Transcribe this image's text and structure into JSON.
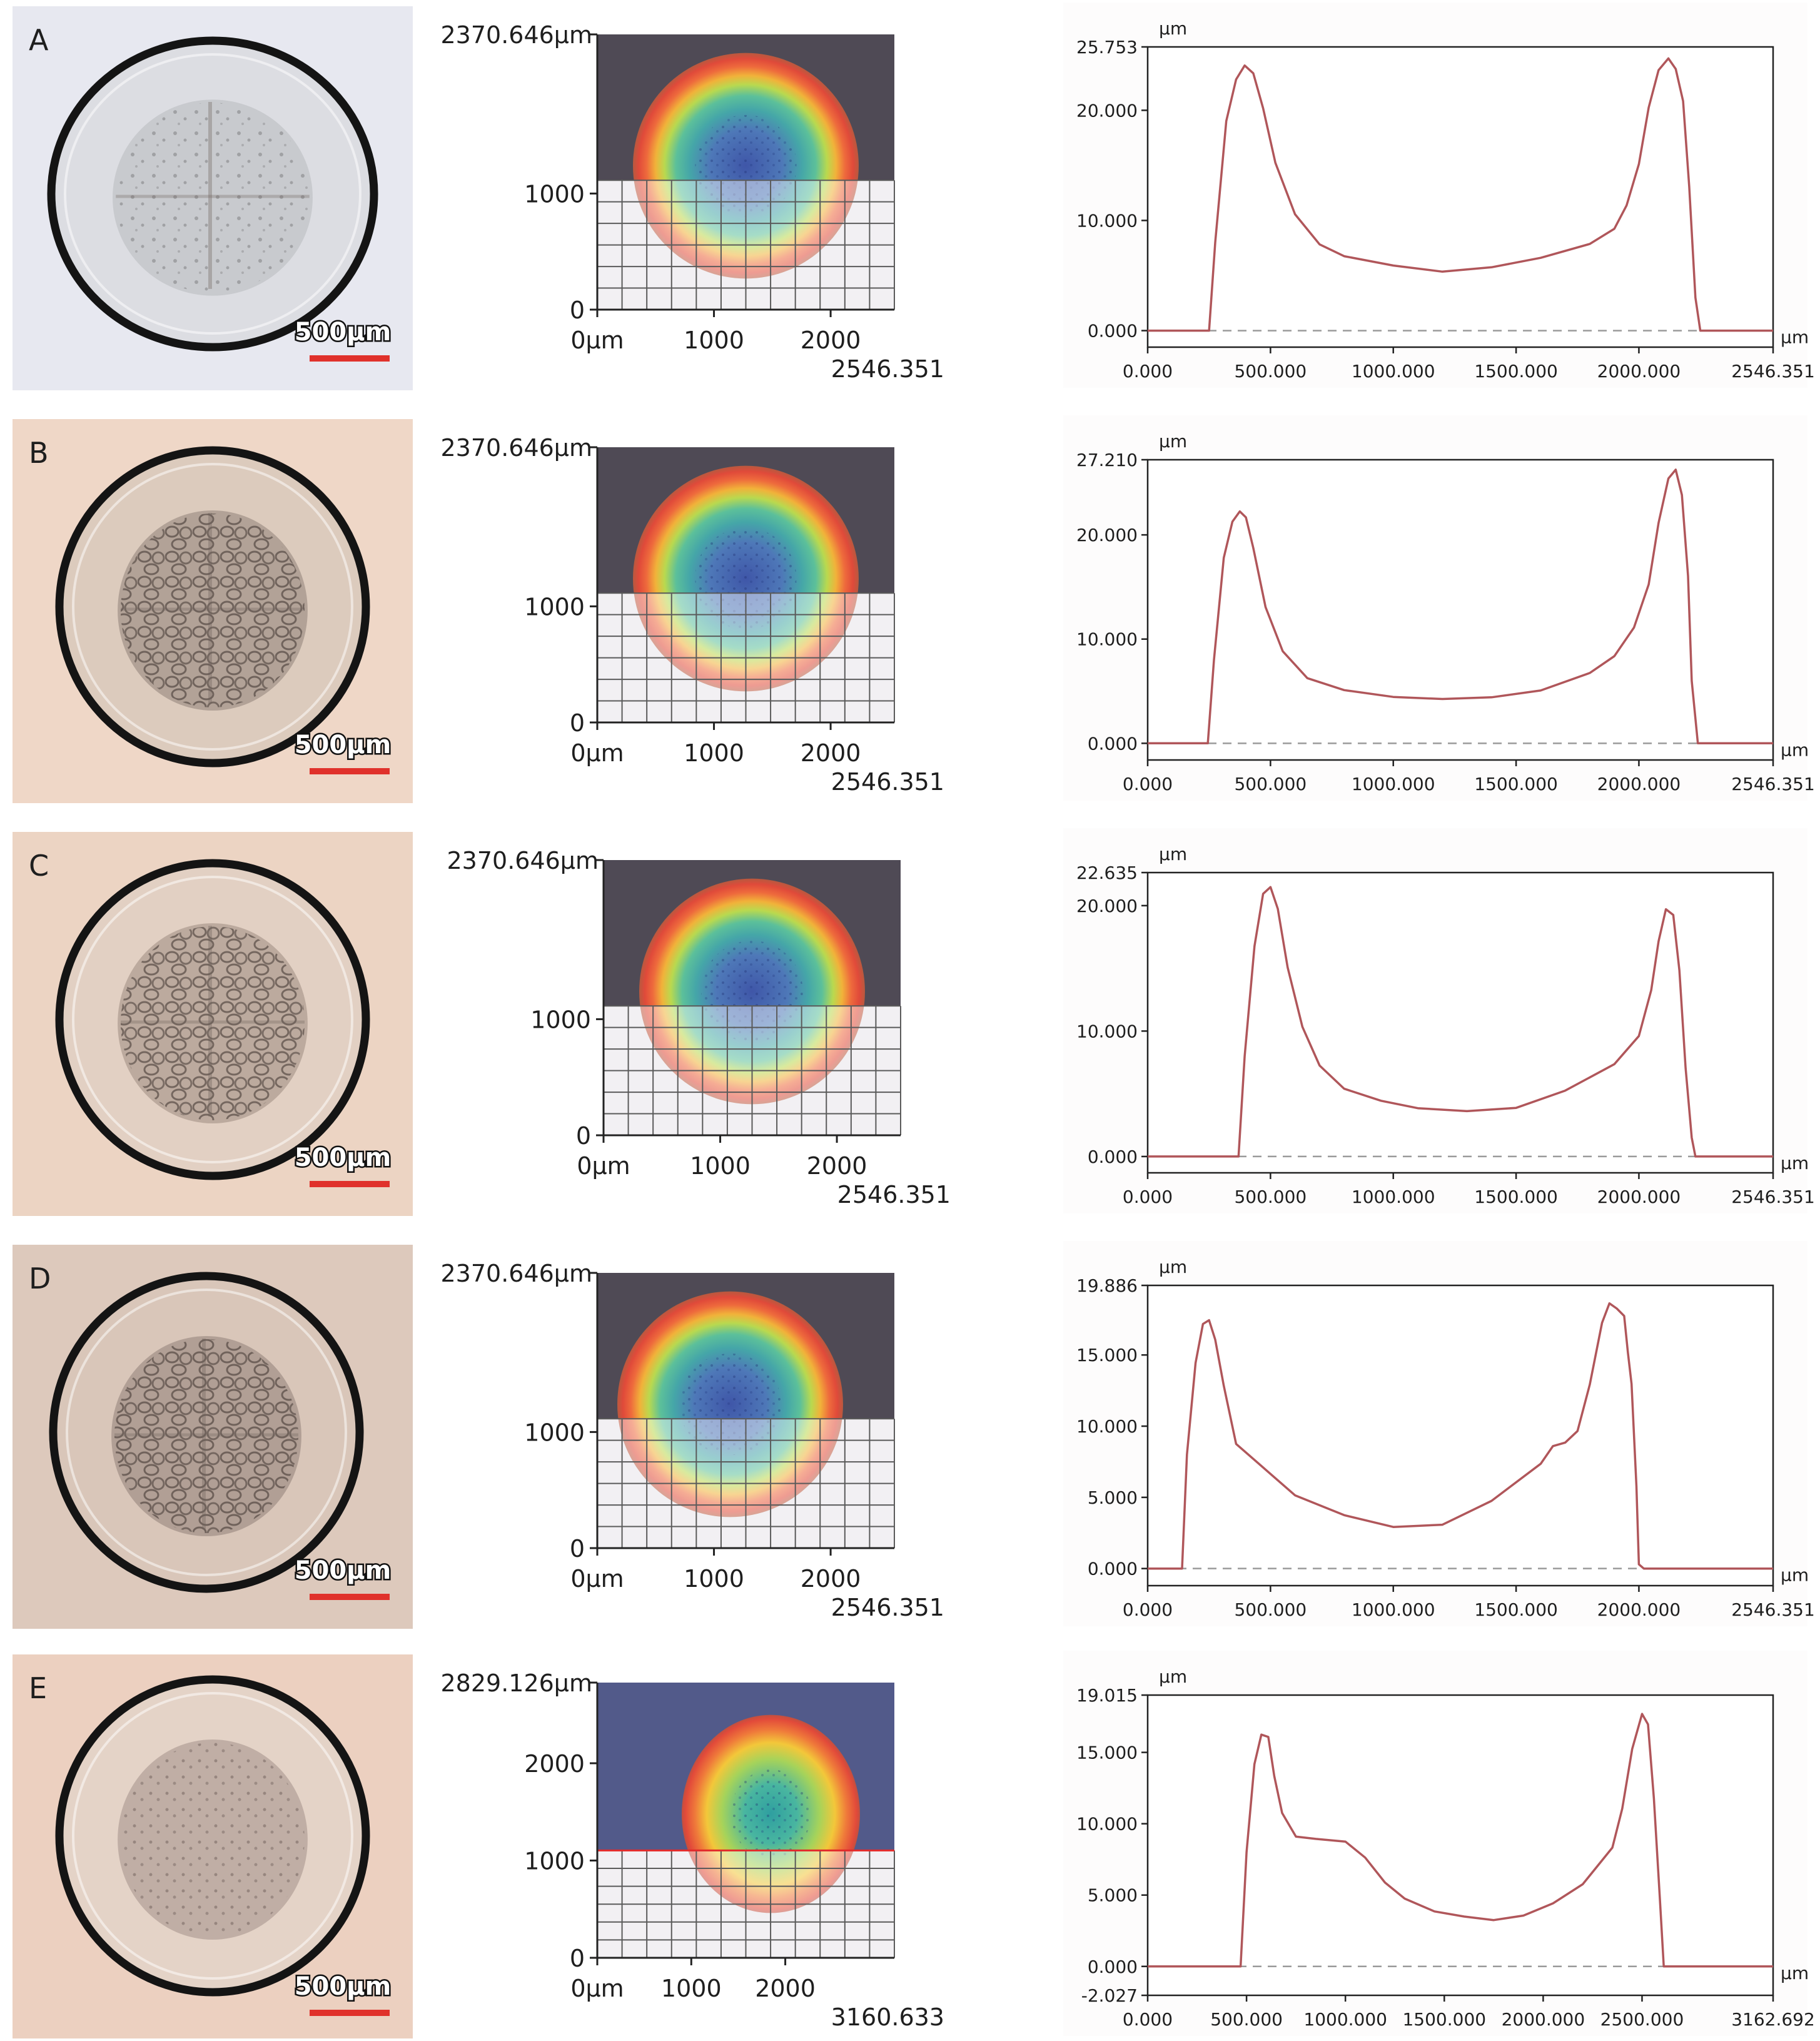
{
  "figure": {
    "scale_bar_label": "500µm",
    "colors": {
      "profile_line": "#b0565a",
      "scale_bar": "#e0312b",
      "map_dark_top": "#4f4a55",
      "grid_line": "#5a5a5a"
    }
  },
  "panels": [
    {
      "label": "A",
      "photo": {
        "bg": "#e7e8f0",
        "ring": "#141414",
        "inner": "#dcdde2",
        "center": "#b8b9bd",
        "pattern": "grid"
      },
      "height_map": {
        "y_max_label": "2370.646µm",
        "y_ticks": [
          "1000",
          "0"
        ],
        "x_ticks": [
          "0µm",
          "1000",
          "2000"
        ],
        "x_max_label": "2546.351",
        "y_max": 2370.646,
        "x_max": 2546.351
      },
      "chart_data": {
        "type": "line",
        "title": "",
        "xlabel": "µm",
        "ylabel": "µm",
        "x_tick_labels": [
          "0.000",
          "500.000",
          "1000.000",
          "1500.000",
          "2000.000",
          "2546.351"
        ],
        "y_tick_labels": [
          "25.753",
          "20.000",
          "10.000",
          "0.000"
        ],
        "xlim": [
          0,
          2546.351
        ],
        "ylim": [
          -1.5,
          25.753
        ],
        "baseline": 0,
        "series": [
          {
            "name": "profile",
            "x": [
              0,
              250,
              275,
              320,
              360,
              395,
              430,
              470,
              520,
              600,
              700,
              800,
              1000,
              1200,
              1400,
              1600,
              1800,
              1900,
              1950,
              2000,
              2040,
              2080,
              2120,
              2150,
              2180,
              2205,
              2230,
              2250,
              2546.351
            ],
            "y": [
              0,
              0,
              8,
              19,
              23,
              24.3,
              23.4,
              20,
              15,
              10.5,
              8,
              7,
              6,
              5.2,
              5.5,
              6.5,
              8,
              9.5,
              11.5,
              15,
              20,
              23.5,
              24.8,
              24,
              21,
              13,
              3,
              0,
              0
            ]
          }
        ]
      }
    },
    {
      "label": "B",
      "photo": {
        "bg": "#efd7c7",
        "ring": "#141414",
        "inner": "#dccbbd",
        "center": "#8f8178",
        "pattern": "cells"
      },
      "height_map": {
        "y_max_label": "2370.646µm",
        "y_ticks": [
          "1000",
          "0"
        ],
        "x_ticks": [
          "0µm",
          "1000",
          "2000"
        ],
        "x_max_label": "2546.351",
        "y_max": 2370.646,
        "x_max": 2546.351
      },
      "chart_data": {
        "type": "line",
        "title": "",
        "xlabel": "µm",
        "ylabel": "µm",
        "x_tick_labels": [
          "0.000",
          "500.000",
          "1000.000",
          "1500.000",
          "2000.000",
          "2546.351"
        ],
        "y_tick_labels": [
          "27.210",
          "20.000",
          "10.000",
          "0.000"
        ],
        "xlim": [
          0,
          2546.351
        ],
        "ylim": [
          -1.6,
          27.21
        ],
        "baseline": 0,
        "series": [
          {
            "name": "profile",
            "x": [
              0,
              245,
              270,
              310,
              345,
              375,
              400,
              430,
              480,
              550,
              650,
              800,
              1000,
              1200,
              1400,
              1600,
              1800,
              1900,
              1980,
              2040,
              2080,
              2120,
              2150,
              2175,
              2200,
              2215,
              2240,
              2546.351
            ],
            "y": [
              0,
              0,
              8,
              18,
              21.5,
              22.3,
              21.5,
              18.5,
              13,
              9,
              6.5,
              5.2,
              4.3,
              4,
              4.3,
              5.2,
              7,
              8.5,
              11,
              15,
              21,
              25.5,
              26.5,
              24,
              16,
              6,
              0,
              0
            ]
          }
        ]
      }
    },
    {
      "label": "C",
      "photo": {
        "bg": "#ecd4c3",
        "ring": "#141414",
        "inner": "#e2d0c3",
        "center": "#9c8a80",
        "pattern": "cells"
      },
      "height_map": {
        "y_max_label": "2370.646µm",
        "y_ticks": [
          "1000",
          "0"
        ],
        "x_ticks": [
          "0µm",
          "1000",
          "2000"
        ],
        "x_max_label": "2546.351",
        "y_max": 2370.646,
        "x_max": 2546.351
      },
      "chart_data": {
        "type": "line",
        "title": "",
        "xlabel": "µm",
        "ylabel": "µm",
        "x_tick_labels": [
          "0.000",
          "500.000",
          "1000.000",
          "1500.000",
          "2000.000",
          "2546.351"
        ],
        "y_tick_labels": [
          "22.635",
          "20.000",
          "10.000",
          "0.000"
        ],
        "xlim": [
          0,
          2546.351
        ],
        "ylim": [
          -1.3,
          22.635
        ],
        "baseline": 0,
        "series": [
          {
            "name": "profile",
            "x": [
              0,
              370,
              395,
              435,
              470,
              500,
              530,
              570,
              630,
              700,
              800,
              950,
              1100,
              1300,
              1500,
              1700,
              1900,
              2000,
              2050,
              2080,
              2110,
              2140,
              2165,
              2190,
              2215,
              2230,
              2546.351
            ],
            "y": [
              0,
              0,
              8,
              17,
              21,
              21.3,
              19.5,
              15,
              10.5,
              7.5,
              5.5,
              4.3,
              3.6,
              3.5,
              4,
              5.5,
              7.5,
              9.5,
              13,
              17,
              19.8,
              19.5,
              15,
              7,
              1.5,
              0,
              0
            ]
          }
        ]
      }
    },
    {
      "label": "D",
      "photo": {
        "bg": "#ddc9bc",
        "ring": "#141414",
        "inner": "#d9c6b9",
        "center": "#8f8078",
        "pattern": "cells"
      },
      "height_map": {
        "y_max_label": "2370.646µm",
        "y_ticks": [
          "1000",
          "0"
        ],
        "x_ticks": [
          "0µm",
          "1000",
          "2000"
        ],
        "x_max_label": "2546.351",
        "y_max": 2370.646,
        "x_max": 2546.351
      },
      "chart_data": {
        "type": "line",
        "title": "",
        "xlabel": "µm",
        "ylabel": "µm",
        "x_tick_labels": [
          "0.000",
          "500.000",
          "1000.000",
          "1500.000",
          "2000.000",
          "2546.351"
        ],
        "y_tick_labels": [
          "19.886",
          "15.000",
          "10.000",
          "5.000",
          "0.000"
        ],
        "xlim": [
          0,
          2546.351
        ],
        "ylim": [
          -1.2,
          19.886
        ],
        "baseline": 0,
        "series": [
          {
            "name": "profile",
            "x": [
              0,
              140,
              160,
              195,
              225,
              250,
              275,
              310,
              360,
              450,
              600,
              800,
              1000,
              1200,
              1400,
              1600,
              1650,
              1700,
              1750,
              1800,
              1850,
              1880,
              1910,
              1940,
              1955,
              1970,
              1990,
              2000,
              2020,
              2546.351
            ],
            "y": [
              0,
              0,
              8,
              14.5,
              17,
              17.2,
              16,
              13,
              9,
              7.5,
              5,
              3.5,
              2.8,
              3.2,
              5,
              7.5,
              8.5,
              8.6,
              9.5,
              13,
              17.5,
              18.8,
              18.2,
              17.5,
              15,
              13,
              6,
              0.3,
              0,
              0
            ]
          }
        ]
      }
    },
    {
      "label": "E",
      "photo": {
        "bg": "#ecd0c0",
        "ring": "#141414",
        "inner": "#e4d3c7",
        "center": "#a39088",
        "pattern": "dots"
      },
      "height_map": {
        "y_max_label": "2829.126µm",
        "y_ticks": [
          "2000",
          "1000",
          "0"
        ],
        "x_ticks": [
          "0µm",
          "1000",
          "2000"
        ],
        "x_max_label": "3160.633",
        "y_max": 2829.126,
        "x_max": 3160.633
      },
      "chart_data": {
        "type": "line",
        "title": "",
        "xlabel": "µm",
        "ylabel": "µm",
        "x_tick_labels": [
          "0.000",
          "500.000",
          "1000.000",
          "1500.000",
          "2000.000",
          "2500.000",
          "3162.692"
        ],
        "y_tick_labels": [
          "19.015",
          "15.000",
          "10.000",
          "5.000",
          "0.000",
          "-2.027"
        ],
        "xlim": [
          0,
          3162.692
        ],
        "ylim": [
          -2.027,
          19.015
        ],
        "baseline": 0,
        "series": [
          {
            "name": "profile",
            "x": [
              0,
              470,
              500,
              540,
              575,
              610,
              640,
              680,
              750,
              850,
              1000,
              1100,
              1200,
              1300,
              1450,
              1600,
              1750,
              1900,
              2050,
              2200,
              2350,
              2400,
              2450,
              2500,
              2530,
              2560,
              2590,
              2610,
              2650,
              3162.692
            ],
            "y": [
              0,
              0,
              8,
              14,
              16,
              16,
              13.5,
              11,
              9.2,
              8.8,
              8.5,
              7.5,
              6,
              5,
              4,
              3.4,
              3,
              3.4,
              4.5,
              6,
              8.5,
              11,
              15,
              17.5,
              17,
              12,
              5,
              0,
              0,
              0
            ]
          }
        ]
      }
    }
  ]
}
